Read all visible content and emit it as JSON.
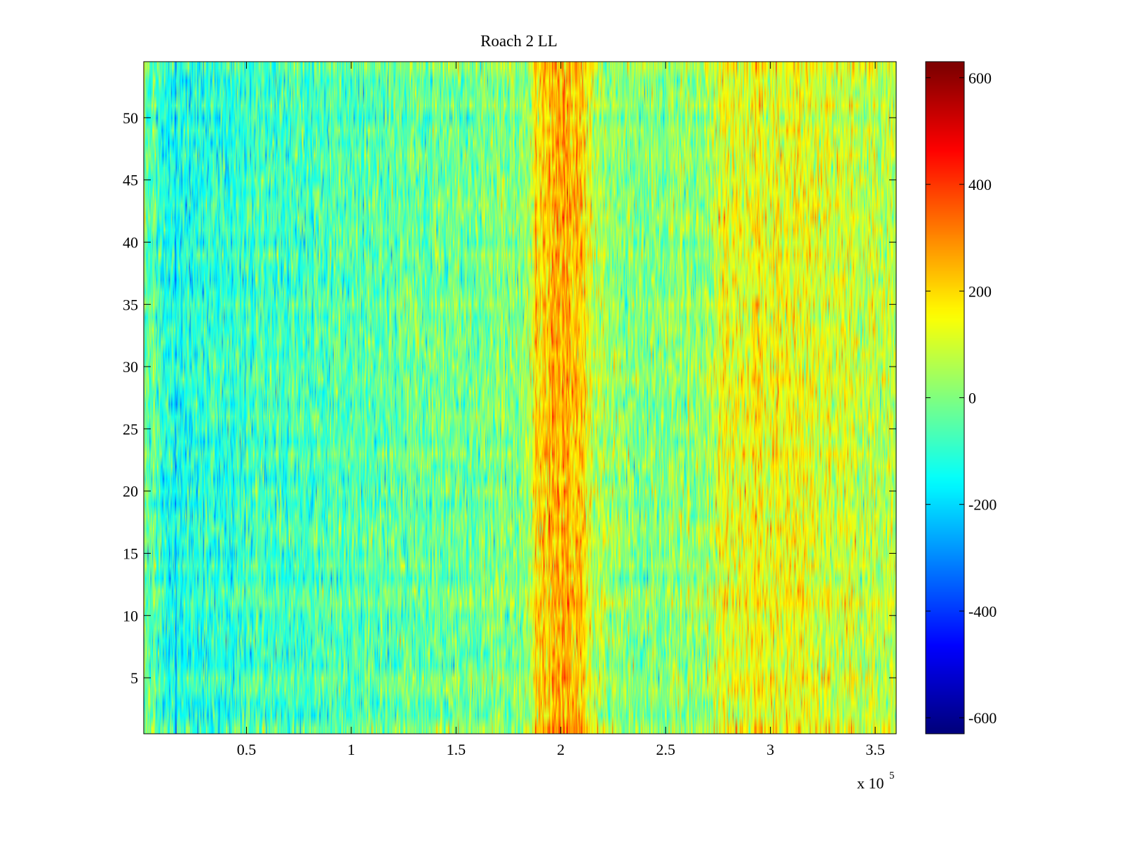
{
  "chart_data": {
    "type": "heatmap",
    "title": "Roach 2 LL",
    "xlabel": "",
    "ylabel": "",
    "xlim": [
      1000,
      360000
    ],
    "ylim": [
      0.5,
      54.5
    ],
    "x_ticks": [
      {
        "value": 50000,
        "label": "0.5"
      },
      {
        "value": 100000,
        "label": "1"
      },
      {
        "value": 150000,
        "label": "1.5"
      },
      {
        "value": 200000,
        "label": "2"
      },
      {
        "value": 250000,
        "label": "2.5"
      },
      {
        "value": 300000,
        "label": "3"
      },
      {
        "value": 350000,
        "label": "3.5"
      }
    ],
    "x_multiplier": {
      "base": "x 10",
      "exponent": "5"
    },
    "y_ticks": [
      {
        "value": 5,
        "label": "5"
      },
      {
        "value": 10,
        "label": "10"
      },
      {
        "value": 15,
        "label": "15"
      },
      {
        "value": 20,
        "label": "20"
      },
      {
        "value": 25,
        "label": "25"
      },
      {
        "value": 30,
        "label": "30"
      },
      {
        "value": 35,
        "label": "35"
      },
      {
        "value": 40,
        "label": "40"
      },
      {
        "value": 45,
        "label": "45"
      },
      {
        "value": 50,
        "label": "50"
      }
    ],
    "rows": 54,
    "colormap": "jet",
    "colorbar": {
      "clim": [
        -630,
        630
      ],
      "ticks": [
        {
          "value": 600,
          "label": "600"
        },
        {
          "value": 400,
          "label": "400"
        },
        {
          "value": 200,
          "label": "200"
        },
        {
          "value": 0,
          "label": "0"
        },
        {
          "value": -200,
          "label": "-200"
        },
        {
          "value": -400,
          "label": "-400"
        },
        {
          "value": -600,
          "label": "-600"
        }
      ]
    },
    "column_profile": [
      {
        "x": 1000,
        "mean": -20
      },
      {
        "x": 15000,
        "mean": -140
      },
      {
        "x": 30000,
        "mean": -110
      },
      {
        "x": 60000,
        "mean": -80
      },
      {
        "x": 100000,
        "mean": -55
      },
      {
        "x": 140000,
        "mean": -20
      },
      {
        "x": 185000,
        "mean": 20
      },
      {
        "x": 188000,
        "mean": 200
      },
      {
        "x": 200000,
        "mean": 260
      },
      {
        "x": 212000,
        "mean": 200
      },
      {
        "x": 215000,
        "mean": 60
      },
      {
        "x": 240000,
        "mean": 10
      },
      {
        "x": 270000,
        "mean": 30
      },
      {
        "x": 275000,
        "mean": 130
      },
      {
        "x": 300000,
        "mean": 150
      },
      {
        "x": 335000,
        "mean": 110
      },
      {
        "x": 360000,
        "mean": 60
      }
    ],
    "noise_sd": 75
  }
}
